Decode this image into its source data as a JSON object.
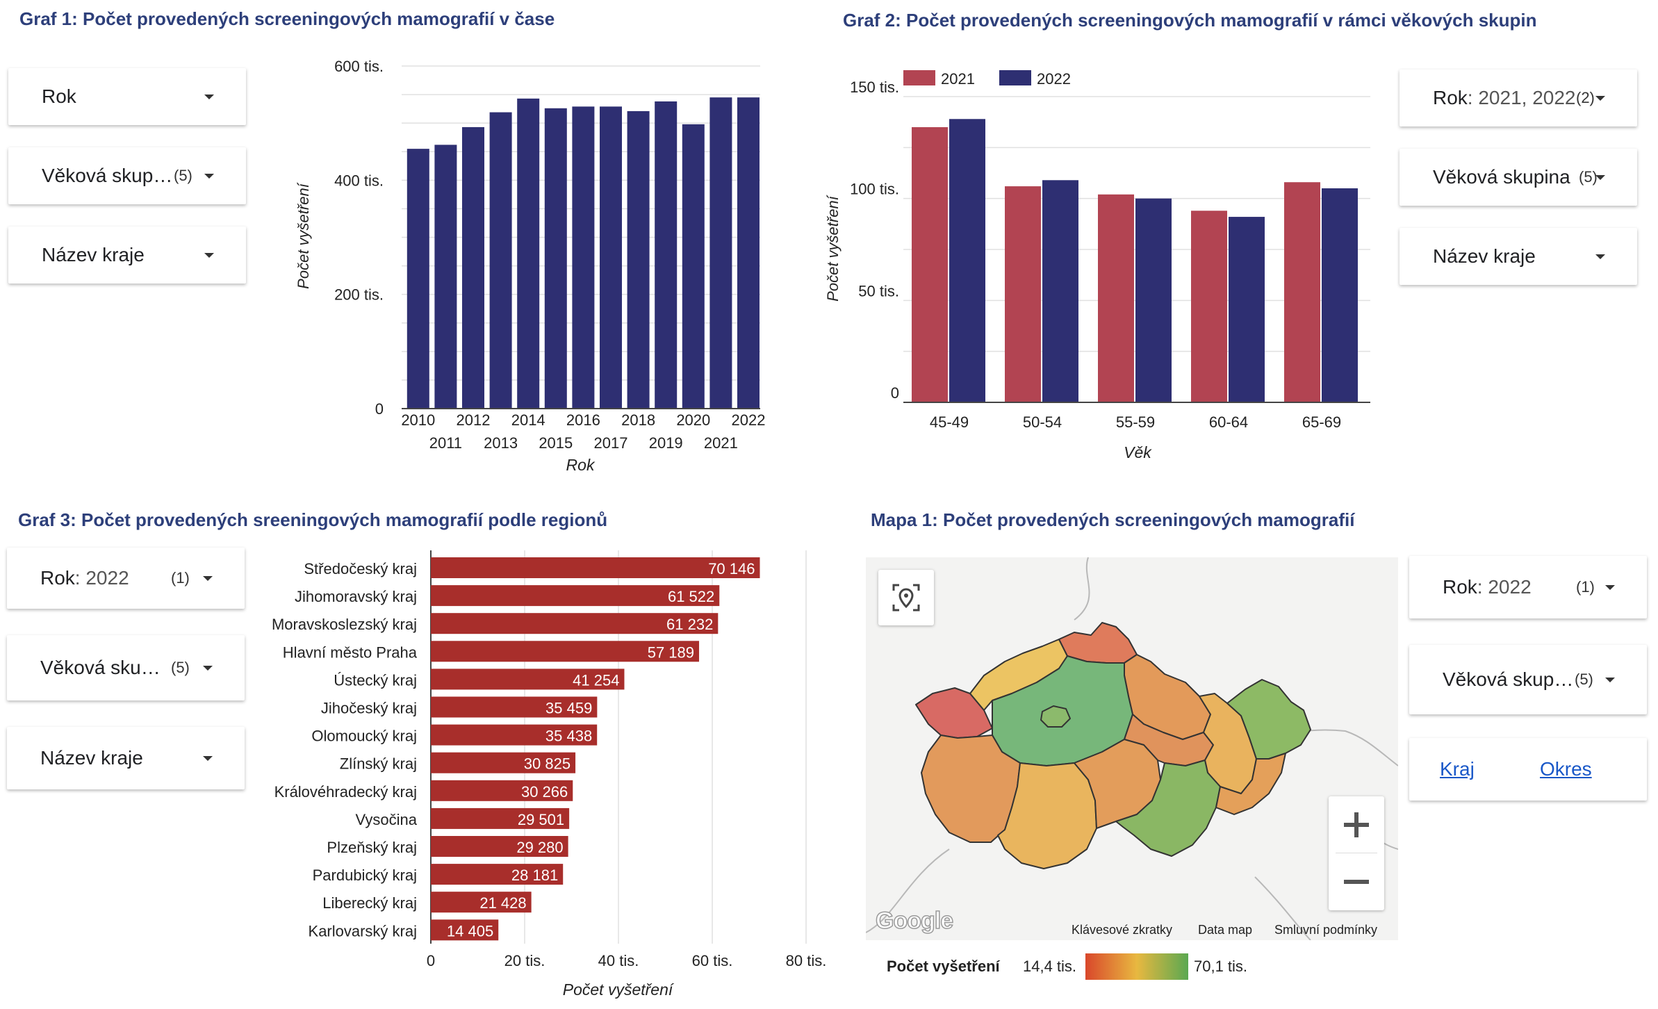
{
  "graf1": {
    "title": "Graf 1: Počet provedených screeningových mamografií v čase",
    "filters": [
      {
        "label": "Rok",
        "value": "",
        "count": ""
      },
      {
        "label": "Věková skupina",
        "value": "",
        "count": "(5)"
      },
      {
        "label": "Název kraje",
        "value": "",
        "count": ""
      }
    ]
  },
  "graf2": {
    "title": "Graf 2: Počet provedených screeningových mamografií v rámci věkových skupin",
    "filters": [
      {
        "label": "Rok",
        "value": ": 2021, 2022",
        "count": "(2)"
      },
      {
        "label": "Věková skupina",
        "value": "",
        "count": "(5)"
      },
      {
        "label": "Název kraje",
        "value": "",
        "count": ""
      }
    ]
  },
  "graf3": {
    "title": "Graf 3: Počet provedených sreeningových mamografií podle regionů",
    "filters": [
      {
        "label": "Rok",
        "value": ": 2022",
        "count": "(1)"
      },
      {
        "label": "Věková skupina",
        "value": "",
        "count": "(5)"
      },
      {
        "label": "Název kraje",
        "value": "",
        "count": ""
      }
    ]
  },
  "mapa1": {
    "title": "Mapa 1: Počet provedených screeningových mamografií",
    "filters": [
      {
        "label": "Rok",
        "value": ": 2022",
        "count": "(1)"
      },
      {
        "label": "Věková skupina",
        "value": "",
        "count": "(5)"
      }
    ],
    "toggle": {
      "kraj": "Kraj",
      "okres": "Okres"
    },
    "footer": {
      "shortcuts": "Klávesové zkratky",
      "mapdata": "Data map",
      "terms": "Smluvní podmínky",
      "logo": "Google"
    },
    "legend": {
      "label": "Počet vyšetření",
      "min": "14,4 tis.",
      "max": "70,1 tis.",
      "low_color": "#d9472b",
      "mid_color": "#e8b840",
      "high_color": "#5aa851"
    },
    "regions": [
      {
        "name": "Karlovarský kraj",
        "value": 14405,
        "color": "#d86a64"
      },
      {
        "name": "Ústecký kraj",
        "value": 41254,
        "color": "#ecc463"
      },
      {
        "name": "Liberecký kraj",
        "value": 21428,
        "color": "#df7b5c"
      },
      {
        "name": "Královéhradecký kraj",
        "value": 30266,
        "color": "#e39a5a"
      },
      {
        "name": "Středočeský kraj",
        "value": 70146,
        "color": "#77b77a"
      },
      {
        "name": "Hlavní město Praha",
        "value": 57189,
        "color": "#8cba6c"
      },
      {
        "name": "Plzeňský kraj",
        "value": 29280,
        "color": "#e29a5c"
      },
      {
        "name": "Pardubický kraj",
        "value": 28181,
        "color": "#e0935c"
      },
      {
        "name": "Olomoucký kraj",
        "value": 35438,
        "color": "#e9b35e"
      },
      {
        "name": "Moravskoslezský kraj",
        "value": 61232,
        "color": "#8dba65"
      },
      {
        "name": "Jihočeský kraj",
        "value": 35459,
        "color": "#e9b55e"
      },
      {
        "name": "Vysočina",
        "value": 29501,
        "color": "#e39d5b"
      },
      {
        "name": "Jihomoravský kraj",
        "value": 61522,
        "color": "#8ab764"
      },
      {
        "name": "Zlínský kraj",
        "value": 30825,
        "color": "#e4a05a"
      }
    ]
  },
  "colors": {
    "navy": "#2e2f72",
    "red2021": "#b24452",
    "bar3": "#a82e2b",
    "title": "#2d3f7a"
  },
  "chart_data": [
    {
      "type": "bar",
      "title": "Graf 1: Počet provedených screeningových mamografií v čase",
      "xlabel": "Rok",
      "ylabel": "Počet vyšetření",
      "categories": [
        "2010",
        "2011",
        "2012",
        "2013",
        "2014",
        "2015",
        "2016",
        "2017",
        "2018",
        "2019",
        "2020",
        "2021",
        "2022"
      ],
      "values": [
        455000,
        462000,
        493000,
        519000,
        543000,
        526000,
        529000,
        529000,
        521000,
        538000,
        498000,
        545000,
        545000
      ],
      "ylim": [
        0,
        600000
      ],
      "yticks": [
        0,
        200000,
        400000,
        600000
      ],
      "ytick_labels": [
        "0",
        "200 tis.",
        "400 tis.",
        "600 tis."
      ],
      "grid": true
    },
    {
      "type": "bar",
      "title": "Graf 2: Počet provedených screeningových mamografií v rámci věkových skupin",
      "xlabel": "Věk",
      "ylabel": "Počet vyšetření",
      "categories": [
        "45-49",
        "50-54",
        "55-59",
        "60-64",
        "65-69"
      ],
      "series": [
        {
          "name": "2021",
          "color": "#b24452",
          "values": [
            135000,
            106000,
            102000,
            94000,
            108000
          ]
        },
        {
          "name": "2022",
          "color": "#2e2f72",
          "values": [
            139000,
            109000,
            100000,
            91000,
            105000
          ]
        }
      ],
      "ylim": [
        0,
        150000
      ],
      "yticks": [
        0,
        50000,
        100000,
        150000
      ],
      "ytick_labels": [
        "0",
        "50 tis.",
        "100 tis.",
        "150 tis."
      ],
      "legend": "top-left",
      "grid": true
    },
    {
      "type": "bar",
      "orientation": "horizontal",
      "title": "Graf 3: Počet provedených sreeningových mamografií podle regionů",
      "xlabel": "Počet vyšetření",
      "categories": [
        "Středočeský kraj",
        "Jihomoravský kraj",
        "Moravskoslezský kraj",
        "Hlavní město Praha",
        "Ústecký kraj",
        "Jihočeský kraj",
        "Olomoucký kraj",
        "Zlínský kraj",
        "Královéhradecký kraj",
        "Vysočina",
        "Plzeňský kraj",
        "Pardubický kraj",
        "Liberecký kraj",
        "Karlovarský kraj"
      ],
      "values": [
        70146,
        61522,
        61232,
        57189,
        41254,
        35459,
        35438,
        30825,
        30266,
        29501,
        29280,
        28181,
        21428,
        14405
      ],
      "labels": [
        "70 146",
        "61 522",
        "61 232",
        "57 189",
        "41 254",
        "35 459",
        "35 438",
        "30 825",
        "30 266",
        "29 501",
        "29 280",
        "28 181",
        "21 428",
        "14 405"
      ],
      "xlim": [
        0,
        80000
      ],
      "xticks": [
        0,
        20000,
        40000,
        60000,
        80000
      ],
      "xtick_labels": [
        "0",
        "20 tis.",
        "40 tis.",
        "60 tis.",
        "80 tis."
      ],
      "grid": true
    }
  ]
}
